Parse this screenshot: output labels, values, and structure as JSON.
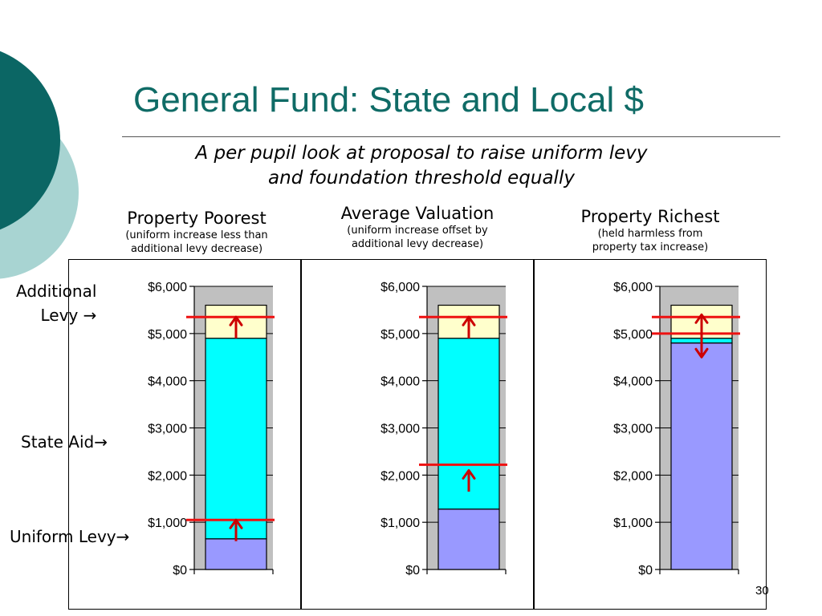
{
  "title": "General Fund: State and Local $",
  "subtitle_line1": "A per pupil look at proposal to raise uniform levy",
  "subtitle_line2": "and foundation threshold equally",
  "side_labels": {
    "additional_levy_line1": "Additional",
    "additional_levy_line2": "Levy →",
    "state_aid": "State Aid→",
    "uniform_levy": "Uniform Levy→"
  },
  "panels": [
    {
      "title": "Property Poorest",
      "note_line1": "(uniform increase less than",
      "note_line2": "additional levy decrease)"
    },
    {
      "title": "Average Valuation",
      "note_line1": "(uniform increase offset by",
      "note_line2": "additional levy decrease)"
    },
    {
      "title": "Property Richest",
      "note_line1": "(held harmless from",
      "note_line2": "property tax increase)"
    }
  ],
  "slide_number": "30",
  "colors": {
    "title": "#0f6b66",
    "uniform_levy": "#9999ff",
    "state_aid": "#00ffff",
    "additional_levy": "#ffffcc",
    "plot_background": "#c0c0c0",
    "marker_line": "#ee1111",
    "arrow": "#cc0000",
    "deco_dark": "#0b6664",
    "deco_light": "#a8d4d2"
  },
  "chart_data": [
    {
      "type": "bar",
      "stacked": true,
      "title": "Property Poorest",
      "ylim": [
        0,
        6000
      ],
      "yticks": [
        "$0",
        "$1,000",
        "$2,000",
        "$3,000",
        "$4,000",
        "$5,000",
        "$6,000"
      ],
      "segments": [
        {
          "name": "Uniform Levy",
          "value": 650
        },
        {
          "name": "State Aid",
          "value": 4250
        },
        {
          "name": "Additional Levy",
          "value": 700
        }
      ],
      "marker_lines": [
        1050,
        5350
      ],
      "arrows": [
        {
          "from": 600,
          "to": 1050
        },
        {
          "from": 4900,
          "to": 5350
        }
      ]
    },
    {
      "type": "bar",
      "stacked": true,
      "title": "Average Valuation",
      "ylim": [
        0,
        6000
      ],
      "yticks": [
        "$0",
        "$1,000",
        "$2,000",
        "$3,000",
        "$4,000",
        "$5,000",
        "$6,000"
      ],
      "segments": [
        {
          "name": "Uniform Levy",
          "value": 1280
        },
        {
          "name": "State Aid",
          "value": 3620
        },
        {
          "name": "Additional Levy",
          "value": 700
        }
      ],
      "marker_lines": [
        2220,
        5350
      ],
      "arrows": [
        {
          "from": 1650,
          "to": 2100
        },
        {
          "from": 4900,
          "to": 5350
        }
      ]
    },
    {
      "type": "bar",
      "stacked": true,
      "title": "Property Richest",
      "ylim": [
        0,
        6000
      ],
      "yticks": [
        "$0",
        "$1,000",
        "$2,000",
        "$3,000",
        "$4,000",
        "$5,000",
        "$6,000"
      ],
      "segments": [
        {
          "name": "Uniform Levy",
          "value": 4800
        },
        {
          "name": "State Aid",
          "value": 100
        },
        {
          "name": "Additional Levy",
          "value": 700
        }
      ],
      "marker_lines": [
        5000,
        5350
      ],
      "arrows": [
        {
          "from": 5000,
          "to": 5400
        },
        {
          "from": 5000,
          "to": 4500
        }
      ]
    }
  ]
}
